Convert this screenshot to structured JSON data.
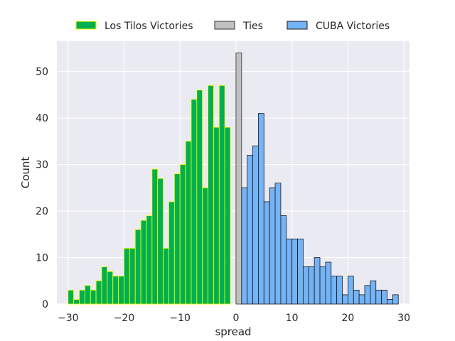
{
  "chart_data": {
    "type": "bar",
    "title": "",
    "xlabel": "spread",
    "ylabel": "Count",
    "xlim": [
      -32,
      31
    ],
    "ylim": [
      0,
      56.5
    ],
    "xticks": [
      -30,
      -20,
      -10,
      0,
      10,
      20,
      30
    ],
    "yticks": [
      0,
      10,
      20,
      30,
      40,
      50
    ],
    "grid": true,
    "legend_position": "top",
    "bin_width": 1,
    "series": [
      {
        "name": "Los Tilos Victories",
        "color": "#00b050",
        "edge_color": "#ffff00",
        "x": [
          -30,
          -29,
          -28,
          -27,
          -26,
          -25,
          -24,
          -23,
          -22,
          -21,
          -20,
          -19,
          -18,
          -17,
          -16,
          -15,
          -14,
          -13,
          -12,
          -11,
          -10,
          -9,
          -8,
          -7,
          -6,
          -5,
          -4,
          -3,
          -2,
          -1
        ],
        "values": [
          3,
          1,
          3,
          4,
          3,
          5,
          8,
          7,
          6,
          6,
          12,
          12,
          16,
          18,
          19,
          29,
          27,
          12,
          22,
          28,
          30,
          35,
          44,
          46,
          25,
          47,
          38,
          47,
          38,
          0
        ]
      },
      {
        "name": "Ties",
        "color": "#c0c0c0",
        "edge_color": "#333333",
        "x": [
          0
        ],
        "values": [
          54
        ]
      },
      {
        "name": "CUBA Victories",
        "color": "#74b3f5",
        "edge_color": "#1a1a1a",
        "x": [
          1,
          2,
          3,
          4,
          5,
          6,
          7,
          8,
          9,
          10,
          11,
          12,
          13,
          14,
          15,
          16,
          17,
          18,
          19,
          20,
          21,
          22,
          23,
          24,
          25,
          26,
          27,
          28
        ],
        "values": [
          25,
          32,
          34,
          41,
          22,
          25,
          26,
          19,
          14,
          14,
          14,
          8,
          8,
          10,
          8,
          9,
          6,
          6,
          2,
          6,
          3,
          2,
          4,
          5,
          3,
          3,
          1,
          2
        ]
      }
    ]
  }
}
